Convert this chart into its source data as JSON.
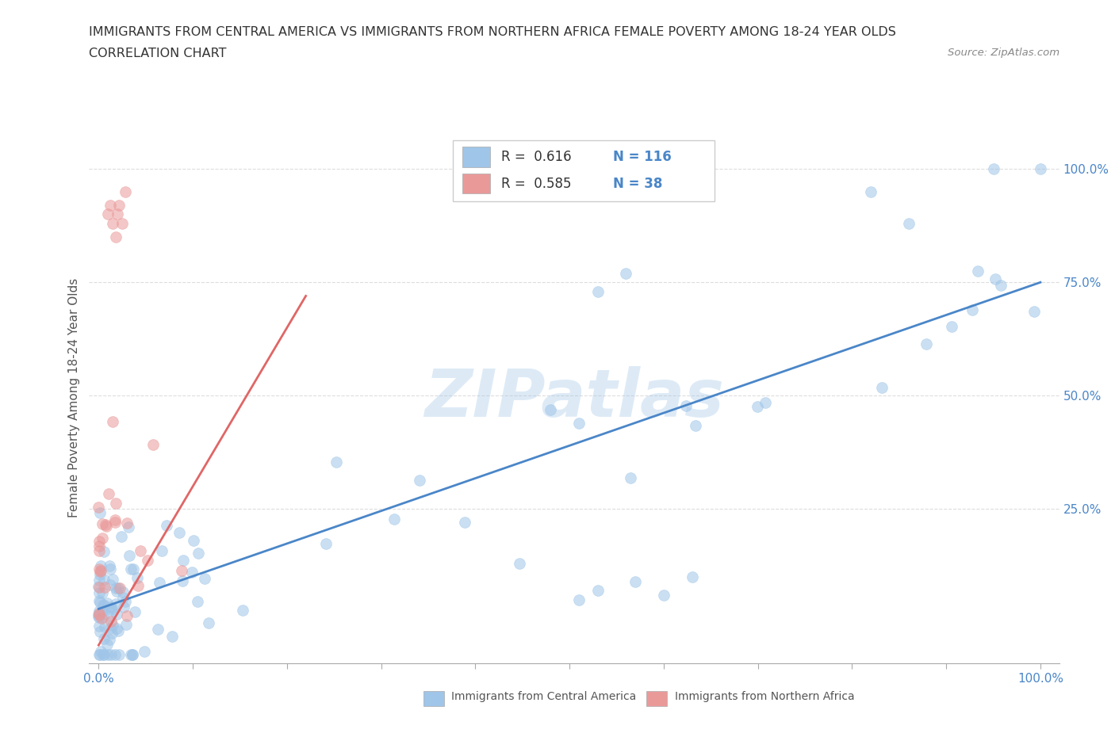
{
  "title_line1": "IMMIGRANTS FROM CENTRAL AMERICA VS IMMIGRANTS FROM NORTHERN AFRICA FEMALE POVERTY AMONG 18-24 YEAR OLDS",
  "title_line2": "CORRELATION CHART",
  "source_text": "Source: ZipAtlas.com",
  "xlabel_blue": "Immigrants from Central America",
  "xlabel_pink": "Immigrants from Northern Africa",
  "ylabel": "Female Poverty Among 18-24 Year Olds",
  "blue_color": "#9fc5e8",
  "pink_color": "#ea9999",
  "blue_line_color": "#4a86c8",
  "pink_line_color": "#e06666",
  "legend_R_blue": "0.616",
  "legend_N_blue": "116",
  "legend_R_pink": "0.585",
  "legend_N_pink": "38",
  "watermark": "ZIPatlas",
  "watermark_color": "#9fc5e8",
  "grid_color": "#dddddd",
  "axis_color": "#aaaaaa",
  "tick_label_color": "#4a86c8"
}
